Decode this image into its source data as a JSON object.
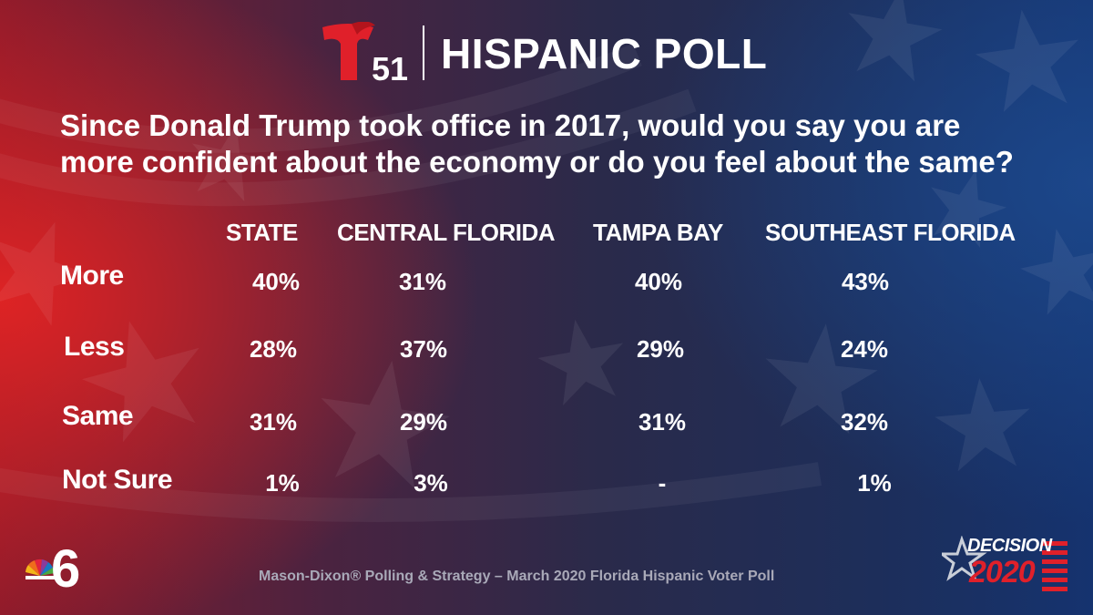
{
  "header": {
    "logo_number": "51",
    "title": "HISPANIC POLL"
  },
  "question": "Since Donald Trump took office in 2017, would you say you are more confident about the economy or do you feel about the same?",
  "chart_data": {
    "type": "table",
    "columns": [
      "STATE",
      "CENTRAL FLORIDA",
      "TAMPA BAY",
      "SOUTHEAST FLORIDA"
    ],
    "rows": [
      {
        "label": "More",
        "values": [
          "40%",
          "31%",
          "40%",
          "43%"
        ]
      },
      {
        "label": "Less",
        "values": [
          "28%",
          "37%",
          "29%",
          "24%"
        ]
      },
      {
        "label": "Same",
        "values": [
          "31%",
          "29%",
          "31%",
          "32%"
        ]
      },
      {
        "label": "Not Sure",
        "values": [
          "1%",
          "3%",
          "-",
          "1%"
        ]
      }
    ]
  },
  "footer": {
    "station_number": "6",
    "source": "Mason-Dixon® Polling & Strategy – March 2020 Florida Hispanic Voter Poll",
    "decision_word": "DECISION",
    "decision_year": "2020"
  },
  "colors": {
    "telemundo_red": "#e0202a",
    "text": "#ffffff",
    "source_text": "#a9a9b8"
  }
}
